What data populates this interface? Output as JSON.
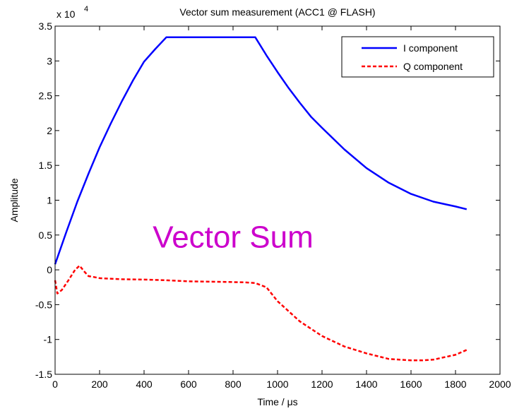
{
  "chart_data": {
    "type": "line",
    "title": "Vector sum measurement (ACC1 @ FLASH)",
    "xlabel": "Time / μs",
    "ylabel": "Amplitude",
    "y_exponent_label": "x 10",
    "y_exponent_power": "4",
    "xlim": [
      0,
      2000
    ],
    "ylim": [
      -15000,
      35000
    ],
    "x_ticks": [
      0,
      200,
      400,
      600,
      800,
      1000,
      1200,
      1400,
      1600,
      1800,
      2000
    ],
    "x_tick_labels": [
      "0",
      "200",
      "400",
      "600",
      "800",
      "1000",
      "1200",
      "1400",
      "1600",
      "1800",
      "2000"
    ],
    "y_ticks": [
      -15000,
      -10000,
      -5000,
      0,
      5000,
      10000,
      15000,
      20000,
      25000,
      30000,
      35000
    ],
    "y_tick_labels": [
      "-1.5",
      "-1",
      "-0.5",
      "0",
      "0.5",
      "1",
      "1.5",
      "2",
      "2.5",
      "3",
      "3.5"
    ],
    "grid": false,
    "legend_position": "top-right",
    "annotation": "Vector Sum",
    "annotation_color": "#cc00cc",
    "series": [
      {
        "name": "I component",
        "color": "#0000ff",
        "style": "solid",
        "x": [
          0,
          50,
          100,
          150,
          200,
          250,
          300,
          350,
          400,
          450,
          500,
          600,
          700,
          800,
          900,
          950,
          1000,
          1050,
          1100,
          1150,
          1200,
          1300,
          1400,
          1500,
          1600,
          1700,
          1800,
          1850
        ],
        "y": [
          800,
          5400,
          9800,
          13800,
          17600,
          21000,
          24200,
          27200,
          29900,
          31700,
          33400,
          33400,
          33400,
          33400,
          33400,
          30800,
          28400,
          26100,
          24000,
          22000,
          20400,
          17300,
          14600,
          12500,
          10900,
          9800,
          9100,
          8700
        ]
      },
      {
        "name": "Q component",
        "color": "#ff0000",
        "style": "dashed",
        "x": [
          0,
          10,
          30,
          60,
          90,
          110,
          130,
          150,
          170,
          200,
          300,
          400,
          500,
          600,
          700,
          800,
          850,
          900,
          950,
          1000,
          1100,
          1200,
          1300,
          1400,
          1500,
          1600,
          1650,
          1700,
          1800,
          1850
        ],
        "y": [
          -1500,
          -3400,
          -2900,
          -1500,
          0,
          600,
          -200,
          -900,
          -1000,
          -1200,
          -1350,
          -1400,
          -1500,
          -1650,
          -1700,
          -1750,
          -1800,
          -1900,
          -2500,
          -4500,
          -7400,
          -9500,
          -11000,
          -12000,
          -12800,
          -13000,
          -13000,
          -12900,
          -12200,
          -11500
        ]
      }
    ]
  }
}
